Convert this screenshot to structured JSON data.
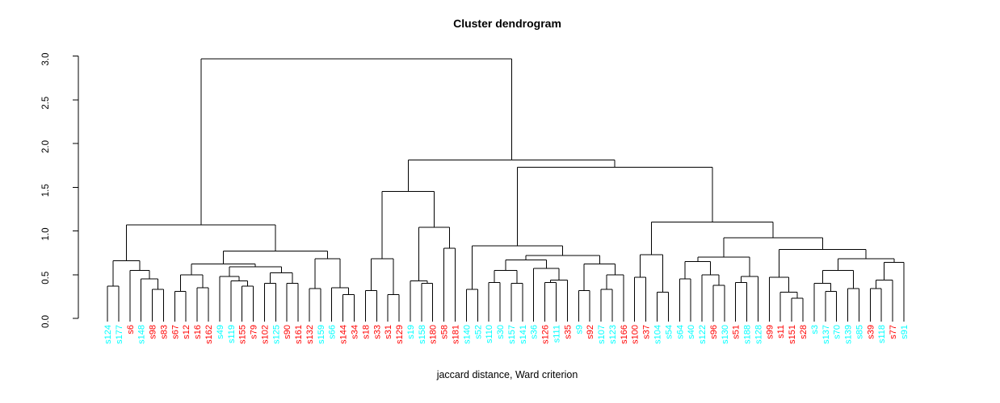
{
  "colors": {
    "red": "#FF0000",
    "cyan": "#00FFFF",
    "line": "#000000",
    "background": "#FFFFFF"
  },
  "chart_data": {
    "type": "dendrogram",
    "title": "Cluster dendrogram",
    "sub": "jaccard distance, Ward criterion",
    "ylabel": "",
    "xlabel": "",
    "ylim": [
      0.0,
      3.0
    ],
    "yticks": [
      0.0,
      0.5,
      1.0,
      1.5,
      2.0,
      2.5,
      3.0
    ],
    "grid": false,
    "legend": false,
    "root_height": 2.97,
    "leaves": [
      {
        "label": "s124",
        "color": "cyan"
      },
      {
        "label": "s177",
        "color": "cyan"
      },
      {
        "label": "s6",
        "color": "red"
      },
      {
        "label": "s148",
        "color": "cyan"
      },
      {
        "label": "s98",
        "color": "red"
      },
      {
        "label": "s83",
        "color": "red"
      },
      {
        "label": "s67",
        "color": "red"
      },
      {
        "label": "s12",
        "color": "red"
      },
      {
        "label": "s16",
        "color": "red"
      },
      {
        "label": "s162",
        "color": "red"
      },
      {
        "label": "s49",
        "color": "cyan"
      },
      {
        "label": "s119",
        "color": "cyan"
      },
      {
        "label": "s155",
        "color": "red"
      },
      {
        "label": "s79",
        "color": "red"
      },
      {
        "label": "s102",
        "color": "red"
      },
      {
        "label": "s125",
        "color": "cyan"
      },
      {
        "label": "s90",
        "color": "red"
      },
      {
        "label": "s161",
        "color": "red"
      },
      {
        "label": "s132",
        "color": "red"
      },
      {
        "label": "s159",
        "color": "cyan"
      },
      {
        "label": "s66",
        "color": "cyan"
      },
      {
        "label": "s144",
        "color": "red"
      },
      {
        "label": "s34",
        "color": "red"
      },
      {
        "label": "s18",
        "color": "red"
      },
      {
        "label": "s33",
        "color": "red"
      },
      {
        "label": "s31",
        "color": "red"
      },
      {
        "label": "s129",
        "color": "red"
      },
      {
        "label": "s19",
        "color": "cyan"
      },
      {
        "label": "s158",
        "color": "cyan"
      },
      {
        "label": "s180",
        "color": "red"
      },
      {
        "label": "s58",
        "color": "red"
      },
      {
        "label": "s181",
        "color": "red"
      },
      {
        "label": "s140",
        "color": "cyan"
      },
      {
        "label": "s52",
        "color": "cyan"
      },
      {
        "label": "s110",
        "color": "cyan"
      },
      {
        "label": "s30",
        "color": "cyan"
      },
      {
        "label": "s157",
        "color": "cyan"
      },
      {
        "label": "s141",
        "color": "cyan"
      },
      {
        "label": "s36",
        "color": "cyan"
      },
      {
        "label": "s126",
        "color": "red"
      },
      {
        "label": "s111",
        "color": "cyan"
      },
      {
        "label": "s35",
        "color": "red"
      },
      {
        "label": "s9",
        "color": "cyan"
      },
      {
        "label": "s92",
        "color": "red"
      },
      {
        "label": "s107",
        "color": "cyan"
      },
      {
        "label": "s123",
        "color": "cyan"
      },
      {
        "label": "s166",
        "color": "red"
      },
      {
        "label": "s100",
        "color": "red"
      },
      {
        "label": "s37",
        "color": "red"
      },
      {
        "label": "s104",
        "color": "cyan"
      },
      {
        "label": "s54",
        "color": "cyan"
      },
      {
        "label": "s64",
        "color": "cyan"
      },
      {
        "label": "s40",
        "color": "cyan"
      },
      {
        "label": "s122",
        "color": "cyan"
      },
      {
        "label": "s96",
        "color": "red"
      },
      {
        "label": "s130",
        "color": "cyan"
      },
      {
        "label": "s51",
        "color": "red"
      },
      {
        "label": "s188",
        "color": "cyan"
      },
      {
        "label": "s128",
        "color": "cyan"
      },
      {
        "label": "s99",
        "color": "red"
      },
      {
        "label": "s11",
        "color": "red"
      },
      {
        "label": "s151",
        "color": "red"
      },
      {
        "label": "s28",
        "color": "red"
      },
      {
        "label": "s3",
        "color": "cyan"
      },
      {
        "label": "s137",
        "color": "cyan"
      },
      {
        "label": "s70",
        "color": "cyan"
      },
      {
        "label": "s139",
        "color": "cyan"
      },
      {
        "label": "s85",
        "color": "cyan"
      },
      {
        "label": "s39",
        "color": "red"
      },
      {
        "label": "s118",
        "color": "cyan"
      },
      {
        "label": "s77",
        "color": "red"
      },
      {
        "label": "s91",
        "color": "cyan"
      }
    ],
    "tree": {
      "h": 2.97,
      "c": [
        {
          "h": 1.07,
          "c": [
            {
              "h": 0.66,
              "c": [
                {
                  "h": 0.37,
                  "c": [
                    "s124",
                    "s177"
                  ]
                },
                {
                  "h": 0.55,
                  "c": [
                    "s6",
                    {
                      "h": 0.45,
                      "c": [
                        "s148",
                        {
                          "h": 0.33,
                          "c": [
                            "s98",
                            "s83"
                          ]
                        }
                      ]
                    }
                  ]
                }
              ]
            },
            {
              "h": 0.77,
              "c": [
                {
                  "h": 0.62,
                  "c": [
                    {
                      "h": 0.5,
                      "c": [
                        {
                          "h": 0.31,
                          "c": [
                            "s67",
                            "s12"
                          ]
                        },
                        {
                          "h": 0.35,
                          "c": [
                            "s16",
                            "s162"
                          ]
                        }
                      ]
                    },
                    {
                      "h": 0.59,
                      "c": [
                        {
                          "h": 0.48,
                          "c": [
                            "s49",
                            {
                              "h": 0.43,
                              "c": [
                                "s119",
                                {
                                  "h": 0.37,
                                  "c": [
                                    "s155",
                                    "s79"
                                  ]
                                }
                              ]
                            }
                          ]
                        },
                        {
                          "h": 0.52,
                          "c": [
                            {
                              "h": 0.4,
                              "c": [
                                "s102",
                                "s125"
                              ]
                            },
                            {
                              "h": 0.4,
                              "c": [
                                "s90",
                                "s161"
                              ]
                            }
                          ]
                        }
                      ]
                    }
                  ]
                },
                {
                  "h": 0.68,
                  "c": [
                    {
                      "h": 0.34,
                      "c": [
                        "s132",
                        "s159"
                      ]
                    },
                    {
                      "h": 0.35,
                      "c": [
                        "s66",
                        {
                          "h": 0.27,
                          "c": [
                            "s144",
                            "s34"
                          ]
                        }
                      ]
                    }
                  ]
                }
              ]
            }
          ]
        },
        {
          "h": 1.81,
          "c": [
            {
              "h": 1.45,
              "c": [
                {
                  "h": 0.68,
                  "c": [
                    {
                      "h": 0.32,
                      "c": [
                        "s18",
                        "s33"
                      ]
                    },
                    {
                      "h": 0.27,
                      "c": [
                        "s31",
                        "s129"
                      ]
                    }
                  ]
                },
                {
                  "h": 1.04,
                  "c": [
                    {
                      "h": 0.43,
                      "c": [
                        "s19",
                        {
                          "h": 0.4,
                          "c": [
                            "s158",
                            "s180"
                          ]
                        }
                      ]
                    },
                    {
                      "h": 0.8,
                      "c": [
                        "s58",
                        "s181"
                      ]
                    }
                  ]
                }
              ]
            },
            {
              "h": 1.73,
              "c": [
                {
                  "h": 0.83,
                  "c": [
                    {
                      "h": 0.33,
                      "c": [
                        "s140",
                        "s52"
                      ]
                    },
                    {
                      "h": 0.72,
                      "c": [
                        {
                          "h": 0.67,
                          "c": [
                            {
                              "h": 0.55,
                              "c": [
                                {
                                  "h": 0.41,
                                  "c": [
                                    "s110",
                                    "s30"
                                  ]
                                },
                                {
                                  "h": 0.4,
                                  "c": [
                                    "s157",
                                    "s141"
                                  ]
                                }
                              ]
                            },
                            {
                              "h": 0.57,
                              "c": [
                                "s36",
                                {
                                  "h": 0.44,
                                  "c": [
                                    {
                                      "h": 0.41,
                                      "c": [
                                        "s126",
                                        "s111"
                                      ]
                                    },
                                    "s35"
                                  ]
                                }
                              ]
                            }
                          ]
                        },
                        {
                          "h": 0.62,
                          "c": [
                            {
                              "h": 0.32,
                              "c": [
                                "s9",
                                "s92"
                              ]
                            },
                            {
                              "h": 0.5,
                              "c": [
                                {
                                  "h": 0.33,
                                  "c": [
                                    "s107",
                                    "s123"
                                  ]
                                },
                                "s166"
                              ]
                            }
                          ]
                        }
                      ]
                    }
                  ]
                },
                {
                  "h": 1.1,
                  "c": [
                    {
                      "h": 0.73,
                      "c": [
                        {
                          "h": 0.47,
                          "c": [
                            "s100",
                            "s37"
                          ]
                        },
                        {
                          "h": 0.3,
                          "c": [
                            "s104",
                            "s54"
                          ]
                        }
                      ]
                    },
                    {
                      "h": 0.92,
                      "c": [
                        {
                          "h": 0.7,
                          "c": [
                            {
                              "h": 0.65,
                              "c": [
                                {
                                  "h": 0.45,
                                  "c": [
                                    "s64",
                                    "s40"
                                  ]
                                },
                                {
                                  "h": 0.5,
                                  "c": [
                                    "s122",
                                    {
                                      "h": 0.38,
                                      "c": [
                                        "s96",
                                        "s130"
                                      ]
                                    }
                                  ]
                                }
                              ]
                            },
                            {
                              "h": 0.48,
                              "c": [
                                {
                                  "h": 0.41,
                                  "c": [
                                    "s51",
                                    "s188"
                                  ]
                                },
                                "s128"
                              ]
                            }
                          ]
                        },
                        {
                          "h": 0.79,
                          "c": [
                            {
                              "h": 0.47,
                              "c": [
                                "s99",
                                {
                                  "h": 0.3,
                                  "c": [
                                    "s11",
                                    {
                                      "h": 0.23,
                                      "c": [
                                        "s151",
                                        "s28"
                                      ]
                                    }
                                  ]
                                }
                              ]
                            },
                            {
                              "h": 0.68,
                              "c": [
                                {
                                  "h": 0.55,
                                  "c": [
                                    {
                                      "h": 0.4,
                                      "c": [
                                        "s3",
                                        {
                                          "h": 0.31,
                                          "c": [
                                            "s137",
                                            "s70"
                                          ]
                                        }
                                      ]
                                    },
                                    {
                                      "h": 0.34,
                                      "c": [
                                        "s139",
                                        "s85"
                                      ]
                                    }
                                  ]
                                },
                                {
                                  "h": 0.64,
                                  "c": [
                                    {
                                      "h": 0.44,
                                      "c": [
                                        {
                                          "h": 0.34,
                                          "c": [
                                            "s39",
                                            "s118"
                                          ]
                                        },
                                        "s77"
                                      ]
                                    },
                                    "s91"
                                  ]
                                }
                              ]
                            }
                          ]
                        }
                      ]
                    }
                  ]
                }
              ]
            }
          ]
        }
      ]
    }
  }
}
